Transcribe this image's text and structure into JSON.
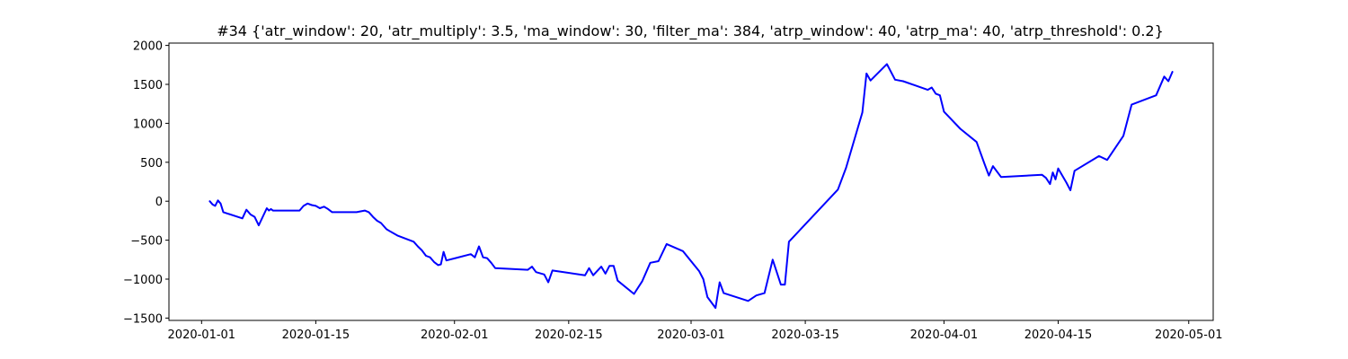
{
  "chart_data": {
    "type": "line",
    "title": "#34 {'atr_window': 20, 'atr_multiply': 3.5, 'ma_window': 30, 'filter_ma': 384, 'atrp_window': 40, 'atrp_ma': 40, 'atrp_threshold': 0.2}",
    "xlabel": "",
    "ylabel": "",
    "xlim": [
      "2019-12-28",
      "2020-05-04"
    ],
    "ylim": [
      -1530,
      2030
    ],
    "x_ticks": [
      "2020-01-01",
      "2020-01-15",
      "2020-02-01",
      "2020-02-15",
      "2020-03-01",
      "2020-03-15",
      "2020-04-01",
      "2020-04-15",
      "2020-05-01"
    ],
    "y_ticks": [
      -1500,
      -1000,
      -500,
      0,
      500,
      1000,
      1500,
      2000
    ],
    "y_tick_labels": [
      "−1500",
      "−1000",
      "−500",
      "0",
      "500",
      "1000",
      "1500",
      "2000"
    ],
    "grid": false,
    "legend": "none",
    "color": "#0000ff",
    "x": [
      "2020-01-02",
      "2020-01-02",
      "2020-01-02",
      "2020-01-03",
      "2020-01-03",
      "2020-01-03",
      "2020-01-06",
      "2020-01-06",
      "2020-01-07",
      "2020-01-07",
      "2020-01-08",
      "2020-01-09",
      "2020-01-09",
      "2020-01-09",
      "2020-01-09",
      "2020-01-13",
      "2020-01-13",
      "2020-01-14",
      "2020-01-14",
      "2020-01-15",
      "2020-01-15",
      "2020-01-16",
      "2020-01-16",
      "2020-01-17",
      "2020-01-20",
      "2020-01-20",
      "2020-01-21",
      "2020-01-21",
      "2020-01-22",
      "2020-01-22",
      "2020-01-23",
      "2020-01-23",
      "2020-01-23",
      "2020-01-24",
      "2020-01-25",
      "2020-01-27",
      "2020-01-27",
      "2020-01-28",
      "2020-01-28",
      "2020-01-29",
      "2020-01-29",
      "2020-01-30",
      "2020-01-30",
      "2020-01-30",
      "2020-01-31",
      "2020-02-03",
      "2020-02-03",
      "2020-02-04",
      "2020-02-04",
      "2020-02-05",
      "2020-02-05",
      "2020-02-06",
      "2020-02-10",
      "2020-02-10",
      "2020-02-11",
      "2020-02-12",
      "2020-02-12",
      "2020-02-13",
      "2020-02-17",
      "2020-02-17",
      "2020-02-18",
      "2020-02-19",
      "2020-02-19",
      "2020-02-20",
      "2020-02-20",
      "2020-02-21",
      "2020-02-23",
      "2020-02-24",
      "2020-02-25",
      "2020-02-26",
      "2020-02-27",
      "2020-02-29",
      "2020-03-02",
      "2020-03-02",
      "2020-03-03",
      "2020-03-04",
      "2020-03-04",
      "2020-03-05",
      "2020-03-08",
      "2020-03-09",
      "2020-03-10",
      "2020-03-11",
      "2020-03-12",
      "2020-03-12",
      "2020-03-13",
      "2020-03-19",
      "2020-03-20",
      "2020-03-22",
      "2020-03-22",
      "2020-03-23",
      "2020-03-25",
      "2020-03-26",
      "2020-03-27",
      "2020-03-30",
      "2020-03-30",
      "2020-03-31",
      "2020-03-31",
      "2020-04-01",
      "2020-04-03",
      "2020-04-05",
      "2020-04-06",
      "2020-04-06",
      "2020-04-07",
      "2020-04-08",
      "2020-04-13",
      "2020-04-13",
      "2020-04-14",
      "2020-04-14",
      "2020-04-14",
      "2020-04-15",
      "2020-04-16",
      "2020-04-16",
      "2020-04-17",
      "2020-04-20",
      "2020-04-21",
      "2020-04-23",
      "2020-04-24",
      "2020-04-27",
      "2020-04-28",
      "2020-04-28",
      "2020-04-29"
    ],
    "values": [
      0,
      -40,
      -60,
      10,
      -30,
      -140,
      -220,
      -110,
      -170,
      -200,
      -310,
      -90,
      -120,
      -100,
      -120,
      -120,
      -60,
      -30,
      -50,
      -60,
      -90,
      -70,
      -100,
      -140,
      -140,
      -130,
      -120,
      -140,
      -200,
      -250,
      -280,
      -320,
      -360,
      -380,
      -440,
      -520,
      -580,
      -630,
      -700,
      -720,
      -780,
      -820,
      -810,
      -650,
      -760,
      -680,
      -720,
      -580,
      -720,
      -730,
      -790,
      -860,
      -880,
      -840,
      -910,
      -940,
      -1040,
      -890,
      -950,
      -860,
      -950,
      -840,
      -930,
      -830,
      -830,
      -1020,
      -1190,
      -1030,
      -790,
      -770,
      -550,
      -640,
      -900,
      -1000,
      -1230,
      -1370,
      -1040,
      -1180,
      -1280,
      -1210,
      -1180,
      -750,
      -1070,
      -1070,
      -520,
      150,
      430,
      1140,
      1640,
      1550,
      1760,
      1560,
      1540,
      1430,
      1460,
      1380,
      1360,
      1150,
      930,
      760,
      470,
      330,
      450,
      310,
      340,
      300,
      220,
      370,
      280,
      420,
      240,
      140,
      390,
      580,
      530,
      840,
      1240,
      1360,
      1600,
      1540,
      1660
    ]
  }
}
